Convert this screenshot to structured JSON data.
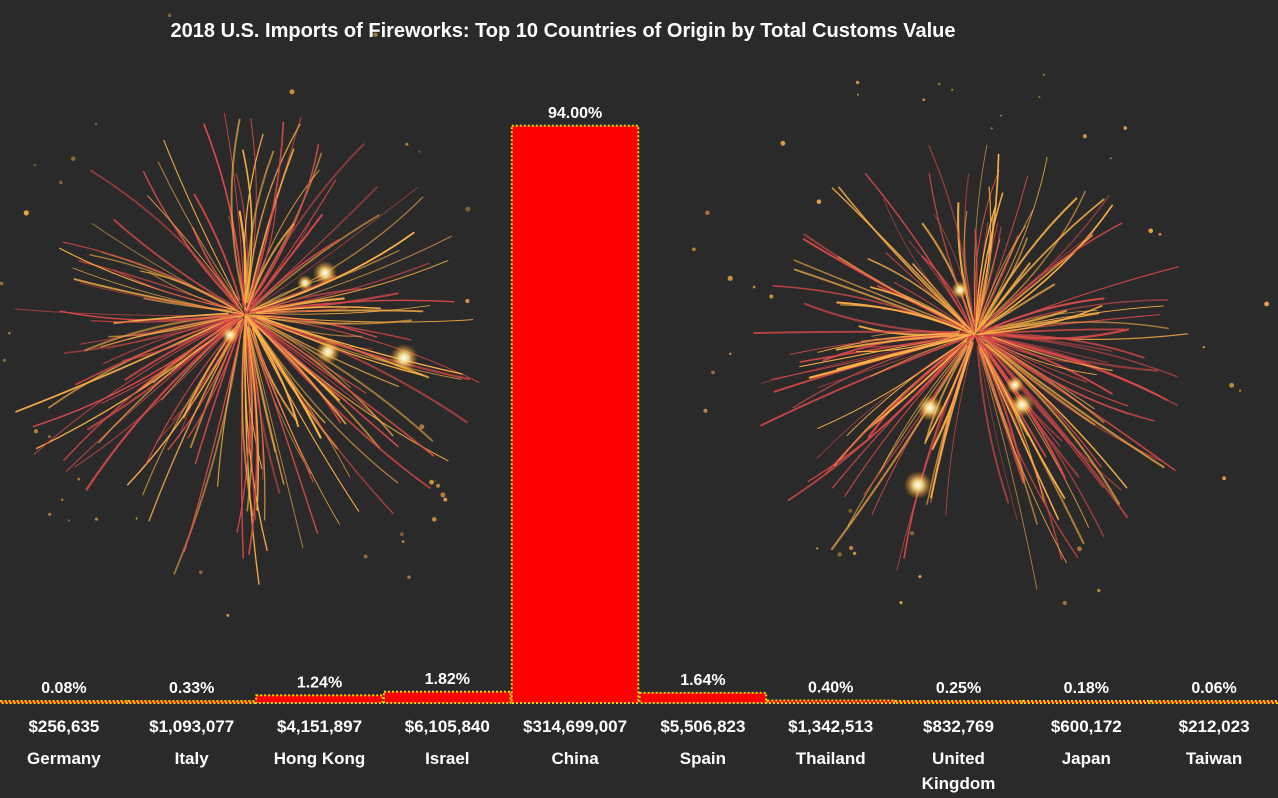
{
  "chart_data": {
    "type": "bar",
    "title": "2018 U.S. Imports of Fireworks: Top 10 Countries of Origin by Total Customs Value",
    "categories": [
      "Germany",
      "Italy",
      "Hong Kong",
      "Israel",
      "China",
      "Spain",
      "Thailand",
      "United Kingdom",
      "Japan",
      "Taiwan"
    ],
    "category_labels": [
      [
        "Germany"
      ],
      [
        "Italy"
      ],
      [
        "Hong Kong"
      ],
      [
        "Israel"
      ],
      [
        "China"
      ],
      [
        "Spain"
      ],
      [
        "Thailand"
      ],
      [
        "United",
        "Kingdom"
      ],
      [
        "Japan"
      ],
      [
        "Taiwan"
      ]
    ],
    "customs_values": [
      "$256,635",
      "$1,093,077",
      "$4,151,897",
      "$6,105,840",
      "$314,699,007",
      "$5,506,823",
      "$1,342,513",
      "$832,769",
      "$600,172",
      "$212,023"
    ],
    "values": [
      0.08,
      0.33,
      1.24,
      1.82,
      94.0,
      1.64,
      0.4,
      0.25,
      0.18,
      0.06
    ],
    "value_labels": [
      "0.08%",
      "0.33%",
      "1.24%",
      "1.82%",
      "94.00%",
      "1.64%",
      "0.40%",
      "0.25%",
      "0.18%",
      "0.06%"
    ],
    "ylim": [
      0,
      100
    ],
    "xlabel": "",
    "ylabel": "",
    "grid": false,
    "legend": "none",
    "colors": {
      "background": "#2a2a2a",
      "bar_fill": "#ff0000",
      "bar_border": "#ffd700",
      "text": "#ffffff",
      "firework_red": "#d94a4a",
      "firework_gold": "#ffb347"
    }
  }
}
